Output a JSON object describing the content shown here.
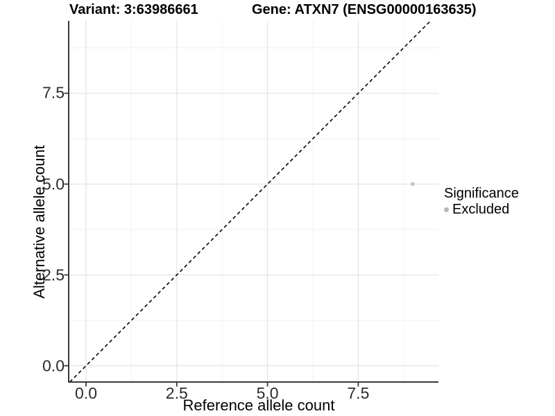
{
  "chart_data": {
    "type": "scatter",
    "title_left": "Variant: 3:63986661",
    "title_right": "Gene: ATXN7 (ENSG00000163635)",
    "xlabel": "Reference allele count",
    "ylabel": "Alternative allele count",
    "xlim": [
      -0.478,
      9.71
    ],
    "ylim": [
      -0.448,
      9.494
    ],
    "x_ticks": [
      0.0,
      2.5,
      5.0,
      7.5
    ],
    "y_ticks": [
      0.0,
      2.5,
      5.0,
      7.5
    ],
    "x_minor_ticks": [
      1.25,
      3.75,
      6.25,
      8.75
    ],
    "y_minor_ticks": [
      1.25,
      3.75,
      6.25,
      8.75
    ],
    "grid": true,
    "identity_line": {
      "style": "dashed",
      "from": -0.448,
      "to": 9.494,
      "color": "#000000"
    },
    "series": [
      {
        "name": "Excluded",
        "color": "#c0c0c0",
        "points": [
          {
            "x": 9,
            "y": 5
          }
        ]
      }
    ],
    "legend": {
      "title": "Significance",
      "position": "right",
      "items": [
        {
          "label": "Excluded",
          "color": "#b8b8b8"
        }
      ]
    },
    "colors": {
      "grid_major": "#e3e3e3",
      "grid_minor": "#efefef",
      "axis_line": "#383838",
      "tick_mark": "#383838",
      "tick_text": "#2b2b2b",
      "point": "#c0c0c0",
      "identity_line": "#000000"
    }
  }
}
